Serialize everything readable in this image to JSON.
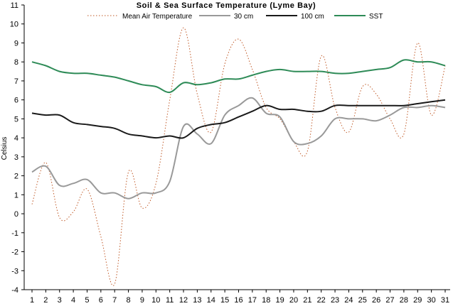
{
  "chart_data": {
    "type": "line",
    "title": "Soil & Sea Surface Temperature (Lyme Bay)",
    "xlabel": "",
    "ylabel": "Celsius",
    "ylim": [
      -4,
      11
    ],
    "yticks": [
      "-4",
      "-3",
      "-2",
      "-1",
      "0",
      "1",
      "2",
      "3",
      "4",
      "5",
      "6",
      "7",
      "8",
      "9",
      "10",
      "11"
    ],
    "x": [
      "1",
      "2",
      "3",
      "4",
      "5",
      "6",
      "7",
      "8",
      "9",
      "10",
      "11",
      "12",
      "13",
      "14",
      "15",
      "16",
      "17",
      "18",
      "19",
      "20",
      "21",
      "22",
      "23",
      "24",
      "25",
      "26",
      "27",
      "28",
      "29",
      "30",
      "31"
    ],
    "grid": false,
    "legend_position": "top",
    "series": [
      {
        "name": "Mean Air Temperature",
        "color": "#c05a28",
        "dash": "dotted",
        "values": [
          0.5,
          2.7,
          -0.2,
          0.1,
          1.3,
          -1.2,
          -3.7,
          2.2,
          0.3,
          1.6,
          6.0,
          9.8,
          6.3,
          4.3,
          7.9,
          9.2,
          7.6,
          5.6,
          5.0,
          3.8,
          3.3,
          8.3,
          5.6,
          4.3,
          6.7,
          6.3,
          5.0,
          4.2,
          9.0,
          5.2,
          7.8
        ]
      },
      {
        "name": "30 cm",
        "color": "#999999",
        "dash": "solid",
        "values": [
          2.2,
          2.5,
          1.5,
          1.6,
          1.8,
          1.1,
          1.1,
          0.8,
          1.1,
          1.1,
          1.7,
          4.6,
          4.2,
          3.7,
          5.2,
          5.7,
          6.1,
          5.3,
          5.1,
          3.8,
          3.7,
          4.1,
          5.0,
          5.0,
          5.0,
          4.9,
          5.2,
          5.6,
          5.6,
          5.7,
          5.6
        ]
      },
      {
        "name": "100 cm",
        "color": "#1a1a1a",
        "dash": "solid",
        "values": [
          5.3,
          5.2,
          5.2,
          4.8,
          4.7,
          4.6,
          4.5,
          4.2,
          4.1,
          4.0,
          4.1,
          4.0,
          4.5,
          4.7,
          4.8,
          5.1,
          5.4,
          5.7,
          5.5,
          5.5,
          5.4,
          5.4,
          5.7,
          5.7,
          5.7,
          5.7,
          5.7,
          5.7,
          5.8,
          5.9,
          6.0
        ]
      },
      {
        "name": "SST",
        "color": "#2e8b57",
        "dash": "solid",
        "values": [
          8.0,
          7.8,
          7.5,
          7.4,
          7.4,
          7.3,
          7.2,
          7.0,
          6.8,
          6.7,
          6.4,
          6.9,
          6.8,
          6.9,
          7.1,
          7.1,
          7.3,
          7.5,
          7.6,
          7.5,
          7.5,
          7.5,
          7.4,
          7.4,
          7.5,
          7.6,
          7.7,
          8.1,
          8.0,
          8.0,
          7.8
        ]
      }
    ]
  }
}
